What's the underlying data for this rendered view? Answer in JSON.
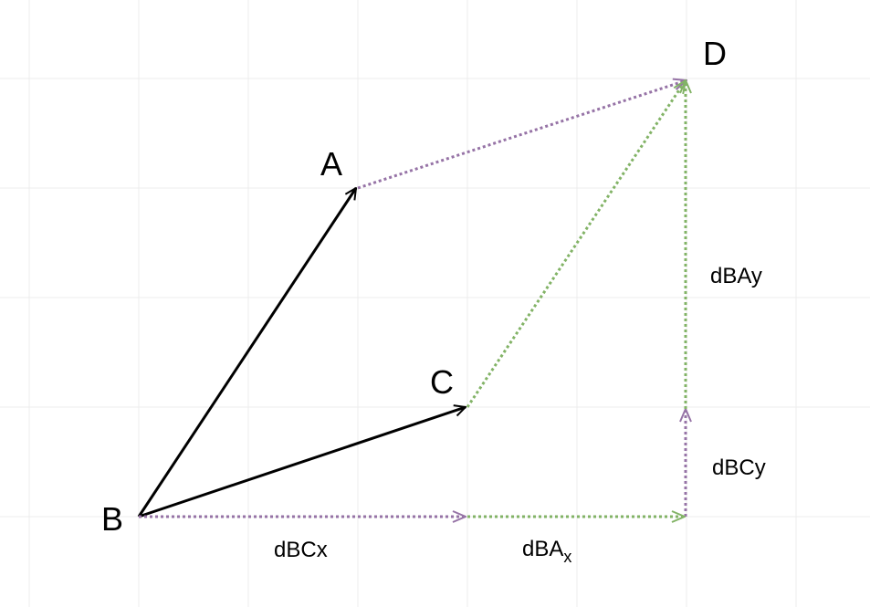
{
  "colors": {
    "background": "#ffffff",
    "grid": "#ececec",
    "solid": "#000000",
    "purple": "#9673a6",
    "green": "#82b366"
  },
  "points": {
    "A": "A",
    "B": "B",
    "C": "C",
    "D": "D"
  },
  "labels": {
    "dBCx": "dBCx",
    "dBAx_base": "dBA",
    "dBAx_sub": "x",
    "dBCy": "dBCy",
    "dBAy": "dBAy"
  }
}
